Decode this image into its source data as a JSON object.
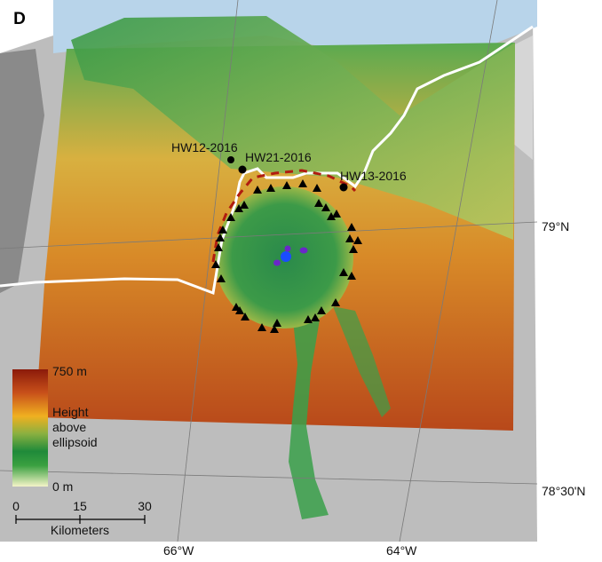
{
  "panel_label": "D",
  "stations": [
    {
      "name": "HW12-2016"
    },
    {
      "name": "HW21-2016"
    },
    {
      "name": "HW13-2016"
    }
  ],
  "graticule": {
    "lat_labels": [
      "79°N",
      "78°30'N"
    ],
    "lon_labels": [
      "66°W",
      "64°W"
    ]
  },
  "legend": {
    "max_label": "750 m",
    "title_lines": [
      "Height",
      "above",
      "ellipsoid"
    ],
    "min_label": "0 m",
    "colors": [
      "#8b1a0a",
      "#c8501a",
      "#f0b020",
      "#8ab040",
      "#1f8a3a",
      "#3aa040",
      "#f4f4c8"
    ]
  },
  "scale_bar": {
    "ticks": [
      "0",
      "15",
      "30"
    ],
    "unit": "Kilometers"
  },
  "colors": {
    "ocean": "#b8d4ea",
    "ice_margin": "#ffffff",
    "rim_dashed": "#b01c10",
    "peak_marker": "#000000",
    "central_blue": "#1a4cff",
    "central_purple": "#6a28c8"
  }
}
